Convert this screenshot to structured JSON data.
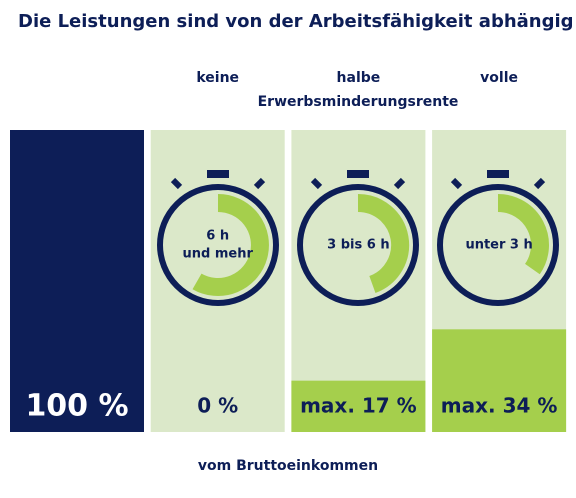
{
  "chart_data": {
    "type": "bar",
    "title": "Die Leistungen sind von der Arbeitsfähigkeit abhängig",
    "subtitle": "Erwerbsminderungsrente",
    "footer": "vom Bruttoeinkommen",
    "categories": [
      null,
      "keine",
      "halbe",
      "volle"
    ],
    "clock_labels": [
      null,
      [
        "6 h",
        "und mehr"
      ],
      [
        "3 bis 6 h"
      ],
      [
        "unter 3 h"
      ]
    ],
    "values": [
      100,
      0,
      17,
      34
    ],
    "value_labels": [
      "100 %",
      "0 %",
      "max. 17 %",
      "max. 34 %"
    ],
    "colors": [
      "#0d1e57",
      "#a5cf4c",
      "#a5cf4c",
      "#a5cf4c"
    ],
    "ylim": [
      0,
      100
    ]
  }
}
